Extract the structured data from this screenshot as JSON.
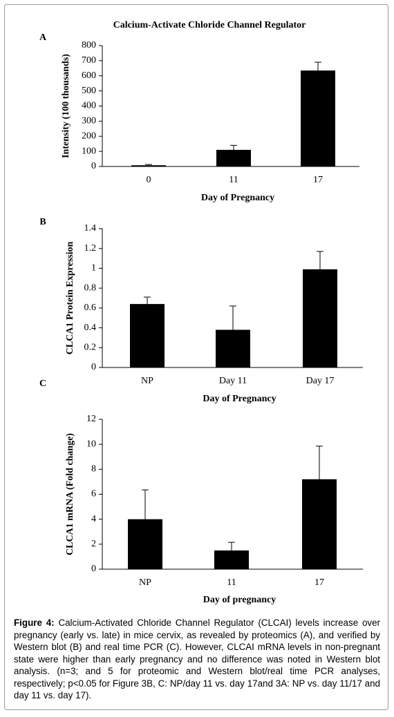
{
  "chart_data": [
    {
      "type": "bar",
      "title": "Calcium-Activate Chloride Channel Regulator",
      "panel": "A",
      "x_label": "Day of Pregnancy",
      "y_label": "Intensity (100 thousands)",
      "categories": [
        "0",
        "11",
        "17"
      ],
      "values": [
        8,
        110,
        635
      ],
      "errors": [
        5,
        30,
        55
      ],
      "color": "#000000",
      "ylim": [
        0,
        800
      ],
      "yticks": [
        0,
        100,
        200,
        300,
        400,
        500,
        600,
        700,
        800
      ]
    },
    {
      "type": "bar",
      "panel": "B",
      "x_label": "Day of Pregnancy",
      "y_label": "CLCA1 Protein Expression",
      "categories": [
        "NP",
        "Day 11",
        "Day 17"
      ],
      "values": [
        0.64,
        0.38,
        0.99
      ],
      "errors": [
        0.07,
        0.24,
        0.18
      ],
      "color": "#000000",
      "ylim": [
        0,
        1.4
      ],
      "yticks": [
        0,
        0.2,
        0.4,
        0.6,
        0.8,
        1,
        1.2,
        1.4
      ]
    },
    {
      "type": "bar",
      "panel": "C",
      "x_label": "Day of pregnancy",
      "y_label": "CLCA1 mRNA (Fold change)",
      "categories": [
        "NP",
        "11",
        "17"
      ],
      "values": [
        4.0,
        1.5,
        7.2
      ],
      "errors": [
        2.35,
        0.65,
        2.65
      ],
      "color": "#000000",
      "ylim": [
        0,
        12
      ],
      "yticks": [
        0,
        2,
        4,
        6,
        8,
        10,
        12
      ]
    }
  ],
  "caption": {
    "label": "Figure 4:",
    "text": "Calcium-Activated Chloride Channel Regulator (CLCAI) levels increase over pregnancy (early vs. late) in mice cervix, as revealed by proteomics (A), and verified by Western blot (B) and real time PCR (C). However, CLCAI mRNA levels in non-pregnant state were higher than early pregnancy and no difference was noted in Western blot analysis. (n=3; and 5 for proteomic and Western blot/real time PCR analyses, respectively; p<0.05 for Figure 3B, C: NP/day 11 vs. day 17and 3A: NP vs. day 11/17 and day 11 vs. day 17)."
  }
}
